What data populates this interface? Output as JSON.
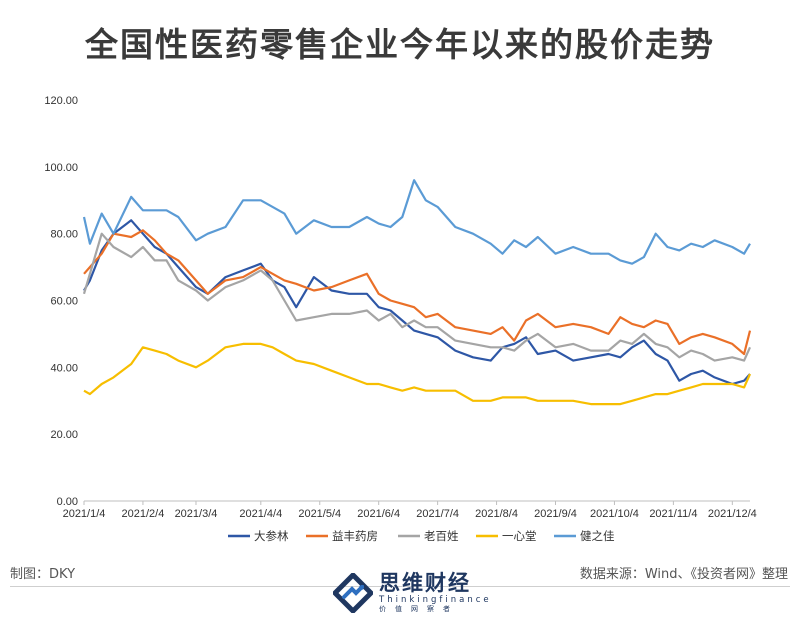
{
  "title": "全国性医药零售企业今年以来的股价走势",
  "footer": {
    "maker_label": "制图：",
    "maker": "DKY",
    "source": "数据来源：Wind、《投资者网》整理"
  },
  "logo": {
    "name": "思维财经",
    "subtitle": "Thinkingfinance",
    "tagline": "价值网察者"
  },
  "colors": {
    "大参林": "#2e57a6",
    "益丰药房": "#ea7028",
    "老百姓": "#a5a5a5",
    "一心堂": "#f7be00",
    "健之佳": "#5b9bd5"
  },
  "chart_data": {
    "type": "line",
    "title": "",
    "xlabel": "",
    "ylabel": "",
    "ylim": [
      0,
      120
    ],
    "yticks": [
      "0.00",
      "20.00",
      "40.00",
      "60.00",
      "80.00",
      "100.00",
      "120.00"
    ],
    "grid": false,
    "legend_position": "bottom",
    "x_ticks": [
      "2021/1/4",
      "2021/2/4",
      "2021/3/4",
      "2021/4/4",
      "2021/5/4",
      "2021/6/4",
      "2021/7/4",
      "2021/8/4",
      "2021/9/4",
      "2021/10/4",
      "2021/11/4",
      "2021/12/4"
    ],
    "x_tick_index": [
      0,
      1,
      1.9,
      3,
      4,
      5,
      6,
      7,
      8,
      9,
      10,
      11
    ],
    "series": [
      {
        "name": "大参林",
        "x": [
          0,
          0.1,
          0.3,
          0.5,
          0.8,
          1.0,
          1.2,
          1.4,
          1.6,
          1.9,
          2.1,
          2.4,
          2.7,
          3.0,
          3.2,
          3.4,
          3.6,
          3.9,
          4.2,
          4.5,
          4.8,
          5.0,
          5.2,
          5.4,
          5.6,
          5.8,
          6.0,
          6.3,
          6.6,
          6.9,
          7.1,
          7.3,
          7.5,
          7.7,
          8.0,
          8.3,
          8.6,
          8.9,
          9.1,
          9.3,
          9.5,
          9.7,
          9.9,
          10.1,
          10.3,
          10.5,
          10.7,
          11.0,
          11.2,
          11.3
        ],
        "values": [
          63,
          66,
          75,
          80,
          84,
          80,
          76,
          74,
          70,
          64,
          62,
          67,
          69,
          71,
          66,
          64,
          58,
          67,
          63,
          62,
          62,
          58,
          57,
          54,
          51,
          50,
          49,
          45,
          43,
          42,
          46,
          47,
          49,
          44,
          45,
          42,
          43,
          44,
          43,
          46,
          48,
          44,
          42,
          36,
          38,
          39,
          37,
          35,
          36,
          38
        ]
      },
      {
        "name": "益丰药房",
        "x": [
          0,
          0.1,
          0.3,
          0.5,
          0.8,
          1.0,
          1.2,
          1.4,
          1.6,
          1.9,
          2.1,
          2.4,
          2.7,
          3.0,
          3.2,
          3.4,
          3.6,
          3.9,
          4.2,
          4.5,
          4.8,
          5.0,
          5.2,
          5.4,
          5.6,
          5.8,
          6.0,
          6.3,
          6.6,
          6.9,
          7.1,
          7.3,
          7.5,
          7.7,
          8.0,
          8.3,
          8.6,
          8.9,
          9.1,
          9.3,
          9.5,
          9.7,
          9.9,
          10.1,
          10.3,
          10.5,
          10.7,
          11.0,
          11.2,
          11.3
        ],
        "values": [
          68,
          70,
          74,
          80,
          79,
          81,
          78,
          74,
          72,
          66,
          62,
          66,
          67,
          70,
          68,
          66,
          65,
          63,
          64,
          66,
          68,
          62,
          60,
          59,
          58,
          55,
          56,
          52,
          51,
          50,
          52,
          48,
          54,
          56,
          52,
          53,
          52,
          50,
          55,
          53,
          52,
          54,
          53,
          47,
          49,
          50,
          49,
          47,
          44,
          51
        ]
      },
      {
        "name": "老百姓",
        "x": [
          0,
          0.1,
          0.3,
          0.5,
          0.8,
          1.0,
          1.2,
          1.4,
          1.6,
          1.9,
          2.1,
          2.4,
          2.7,
          3.0,
          3.2,
          3.4,
          3.6,
          3.9,
          4.2,
          4.5,
          4.8,
          5.0,
          5.2,
          5.4,
          5.6,
          5.8,
          6.0,
          6.3,
          6.6,
          6.9,
          7.1,
          7.3,
          7.5,
          7.7,
          8.0,
          8.3,
          8.6,
          8.9,
          9.1,
          9.3,
          9.5,
          9.7,
          9.9,
          10.1,
          10.3,
          10.5,
          10.7,
          11.0,
          11.2,
          11.3
        ],
        "values": [
          62,
          68,
          80,
          76,
          73,
          76,
          72,
          72,
          66,
          63,
          60,
          64,
          66,
          69,
          66,
          60,
          54,
          55,
          56,
          56,
          57,
          54,
          56,
          52,
          54,
          52,
          52,
          48,
          47,
          46,
          46,
          45,
          48,
          50,
          46,
          47,
          45,
          45,
          48,
          47,
          50,
          47,
          46,
          43,
          45,
          44,
          42,
          43,
          42,
          46
        ]
      },
      {
        "name": "一心堂",
        "x": [
          0,
          0.1,
          0.3,
          0.5,
          0.8,
          1.0,
          1.2,
          1.4,
          1.6,
          1.9,
          2.1,
          2.4,
          2.7,
          3.0,
          3.2,
          3.4,
          3.6,
          3.9,
          4.2,
          4.5,
          4.8,
          5.0,
          5.2,
          5.4,
          5.6,
          5.8,
          6.0,
          6.3,
          6.6,
          6.9,
          7.1,
          7.3,
          7.5,
          7.7,
          8.0,
          8.3,
          8.6,
          8.9,
          9.1,
          9.3,
          9.5,
          9.7,
          9.9,
          10.1,
          10.3,
          10.5,
          10.7,
          11.0,
          11.2,
          11.3
        ],
        "values": [
          33,
          32,
          35,
          37,
          41,
          46,
          45,
          44,
          42,
          40,
          42,
          46,
          47,
          47,
          46,
          44,
          42,
          41,
          39,
          37,
          35,
          35,
          34,
          33,
          34,
          33,
          33,
          33,
          30,
          30,
          31,
          31,
          31,
          30,
          30,
          30,
          29,
          29,
          29,
          30,
          31,
          32,
          32,
          33,
          34,
          35,
          35,
          35,
          34,
          38
        ]
      },
      {
        "name": "健之佳",
        "x": [
          0,
          0.1,
          0.3,
          0.5,
          0.8,
          1.0,
          1.2,
          1.4,
          1.6,
          1.9,
          2.1,
          2.4,
          2.7,
          3.0,
          3.2,
          3.4,
          3.6,
          3.9,
          4.2,
          4.5,
          4.8,
          5.0,
          5.2,
          5.4,
          5.6,
          5.8,
          6.0,
          6.3,
          6.6,
          6.9,
          7.1,
          7.3,
          7.5,
          7.7,
          8.0,
          8.3,
          8.6,
          8.9,
          9.1,
          9.3,
          9.5,
          9.7,
          9.9,
          10.1,
          10.3,
          10.5,
          10.7,
          11.0,
          11.2,
          11.3
        ],
        "values": [
          85,
          77,
          86,
          80,
          91,
          87,
          87,
          87,
          85,
          78,
          80,
          82,
          90,
          90,
          88,
          86,
          80,
          84,
          82,
          82,
          85,
          83,
          82,
          85,
          96,
          90,
          88,
          82,
          80,
          77,
          74,
          78,
          76,
          79,
          74,
          76,
          74,
          74,
          72,
          71,
          73,
          80,
          76,
          75,
          77,
          76,
          78,
          76,
          74,
          77
        ]
      }
    ]
  }
}
